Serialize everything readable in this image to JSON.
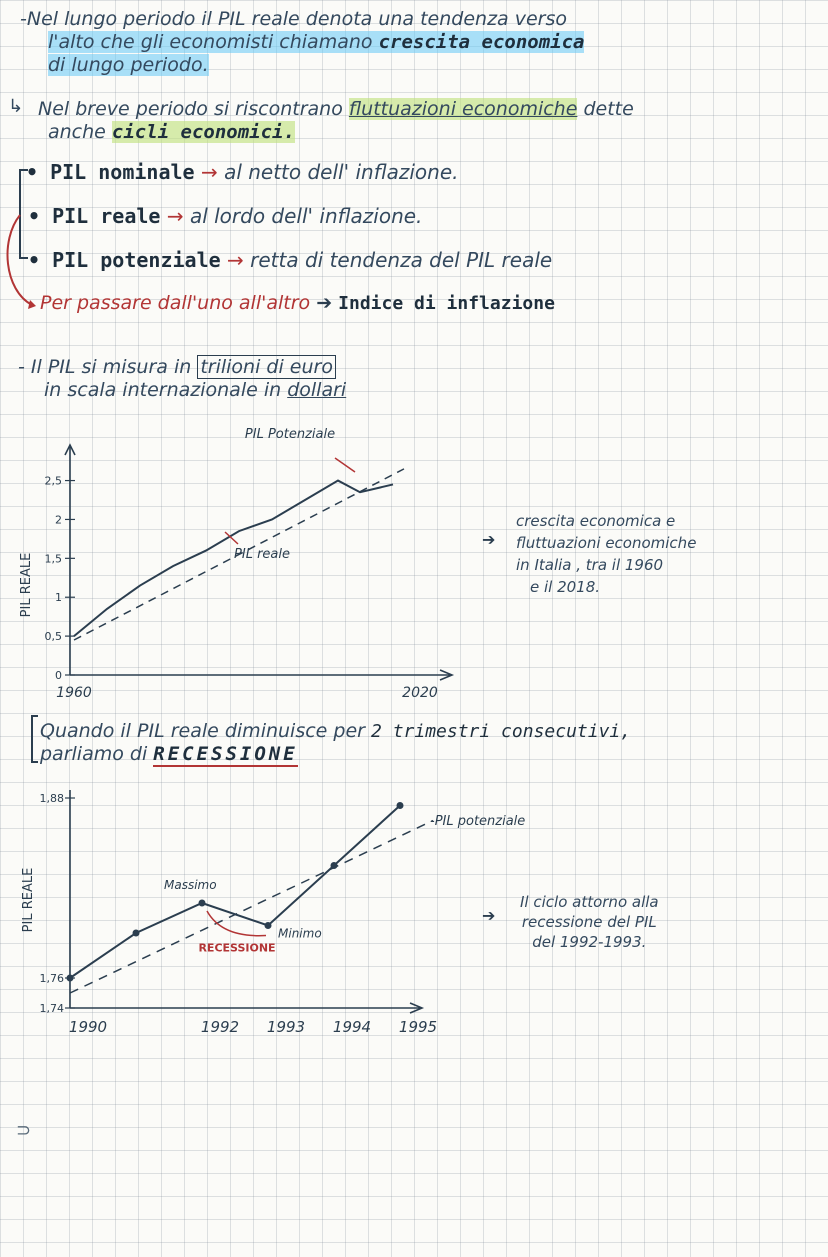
{
  "intro": {
    "line1": "-Nel lungo periodo il PIL reale denota una tendenza verso",
    "line2a": "l'alto che gli economisti chiamano ",
    "line2b": "crescita economica",
    "line3": "di lungo periodo."
  },
  "short": {
    "line1a": "Nel breve periodo si riscontrano ",
    "line1b": "fluttuazioni economiche",
    "line1c": " dette",
    "line2a": "anche ",
    "line2b": "cicli economici."
  },
  "defs": [
    {
      "term": "• PIL nominale",
      "desc": "al netto dell' inflazione."
    },
    {
      "term": "• PIL reale",
      "desc": "al lordo dell' inflazione."
    },
    {
      "term": "• PIL potenziale",
      "desc": "retta di tendenza del PIL reale"
    }
  ],
  "passage": {
    "text": "Per passare dall'uno all'altro",
    "bold": "Indice di inflazione"
  },
  "measure": {
    "line1a": "- Il PIL si misura in ",
    "line1b": "trilioni di euro",
    "line2a": "in scala internazionale in ",
    "line2b": "dollari"
  },
  "chart1_note": [
    "crescita economica e",
    "fluttuazioni economiche",
    "in Italia , tra il 1960",
    "e il 2018."
  ],
  "recession": {
    "line1a": "Quando il PIL reale diminuisce per ",
    "line1b": "2 trimestri consecutivi,",
    "line2a": "parliamo di ",
    "line2b": "RECESSIONE"
  },
  "chart2_note": [
    "Il ciclo attorno alla",
    "recessione del PIL",
    "del 1992-1993."
  ],
  "chart_data": [
    {
      "type": "line",
      "ylabel": "PIL REALE",
      "y_ticks": [
        "0",
        "0,5",
        "1",
        "1,5",
        "2",
        "2,5"
      ],
      "x_ticks": [
        "1960",
        "2020"
      ],
      "ylim": [
        0,
        2.7
      ],
      "xlim": [
        1960,
        2020
      ],
      "series": [
        {
          "name": "PIL reale",
          "x": [
            1960,
            1966,
            1972,
            1978,
            1984,
            1990,
            1996,
            2002,
            2008,
            2012,
            2018
          ],
          "y": [
            0.5,
            0.85,
            1.15,
            1.4,
            1.6,
            1.85,
            2.0,
            2.25,
            2.5,
            2.35,
            2.45
          ]
        },
        {
          "name": "PIL Potenziale",
          "x": [
            1960,
            2020
          ],
          "y": [
            0.45,
            2.65
          ]
        }
      ],
      "annotations": [
        "PIL Potenziale",
        "PIL reale"
      ]
    },
    {
      "type": "line",
      "ylabel": "PIL REALE",
      "y_ticks": [
        "1,74",
        "1,76",
        "1,88"
      ],
      "x_ticks": [
        "1990",
        "1992",
        "1993",
        "1994",
        "1995"
      ],
      "ylim": [
        1.74,
        1.88
      ],
      "xlim": [
        1990,
        1995
      ],
      "series": [
        {
          "name": "PIL reale",
          "x": [
            1990,
            1991,
            1992,
            1993,
            1994,
            1995
          ],
          "y": [
            1.76,
            1.79,
            1.81,
            1.795,
            1.835,
            1.875
          ]
        },
        {
          "name": "PIL potenziale",
          "x": [
            1990,
            1995.5
          ],
          "y": [
            1.75,
            1.865
          ]
        }
      ],
      "annotations": [
        "Massimo",
        "Minimo",
        "RECESSIONE",
        "PIL potenziale"
      ]
    }
  ]
}
